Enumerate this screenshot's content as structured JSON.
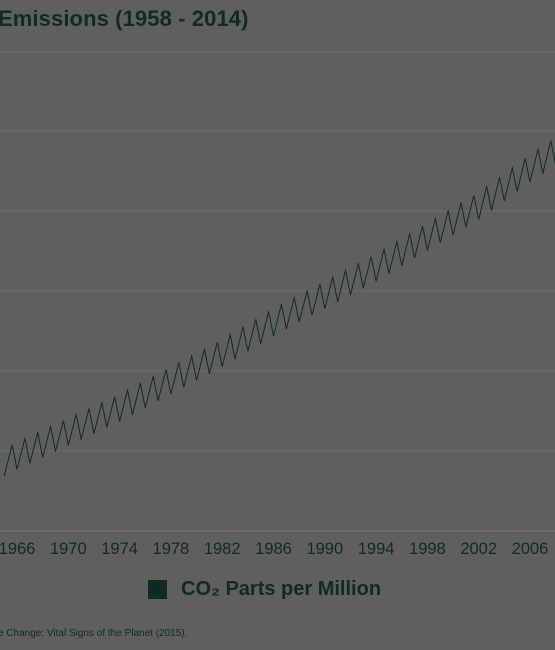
{
  "chart_data": {
    "type": "line",
    "title": "Emissions (1958 - 2014)",
    "xlabel": "",
    "ylabel": "",
    "x_ticks": [
      "1966",
      "1970",
      "1974",
      "1978",
      "1982",
      "1986",
      "1990",
      "1994",
      "1998",
      "2002",
      "2006"
    ],
    "xlim": [
      1965,
      2008.4
    ],
    "ylim": [
      0,
      7
    ],
    "grid": true,
    "legend_position": "bottom",
    "series": [
      {
        "name": "CO₂ Parts per Million",
        "color": "#0e2b27",
        "seasonal_amplitude": 0.2,
        "x": [
          1965,
          1966,
          1970,
          1974,
          1978,
          1982,
          1986,
          1990,
          1994,
          1998,
          2002,
          2006,
          2008.4
        ],
        "y": [
          1.0,
          1.1,
          1.45,
          1.8,
          2.2,
          2.6,
          3.05,
          3.45,
          3.85,
          4.3,
          4.75,
          5.3,
          5.6
        ]
      }
    ]
  },
  "legend": {
    "label": "CO₂ Parts per Million"
  },
  "source_note": "e Change: Vital Signs of the Planet (2015)."
}
